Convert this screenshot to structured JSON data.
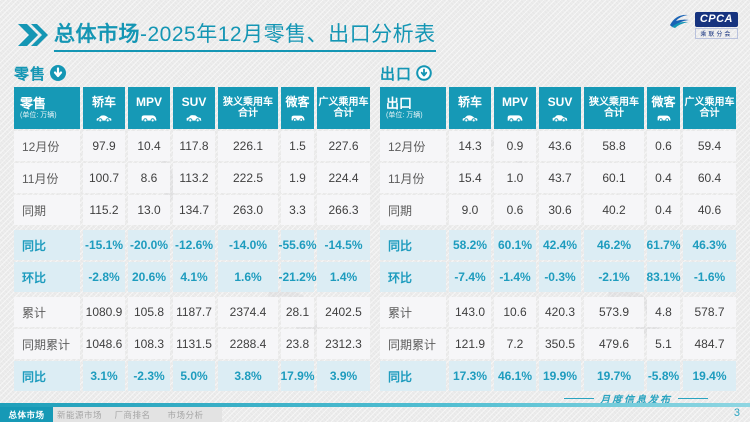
{
  "page": {
    "title_bold": "总体市场",
    "title_rest": "-2025年12月零售、出口分析表",
    "footer_note": "月度信息发布",
    "page_number": "3"
  },
  "logo": {
    "text": "CPCA",
    "subtext": "乘联分会",
    "icon": "cpca-swoosh-icon"
  },
  "tabs": [
    {
      "label": "总体市场",
      "active": true
    },
    {
      "label": "新能源市场",
      "active": false
    },
    {
      "label": "厂商排名",
      "active": false
    },
    {
      "label": "市场分析",
      "active": false
    }
  ],
  "colors": {
    "accent": "#1699b6",
    "title_teal": "#1496b4",
    "pct_bg": "#dcedf4",
    "pct_text": "#1e9cbe",
    "logo_blue": "#16337f"
  },
  "tables": [
    {
      "id": "retail",
      "section_label": "零售",
      "section_icon": "circle-down-arrow-filled-icon",
      "corner_label": "零售",
      "unit": "(单位: 万辆)",
      "columns": [
        {
          "label": "轿车",
          "icon": "sedan-icon"
        },
        {
          "label": "MPV",
          "icon": "mpv-icon"
        },
        {
          "label": "SUV",
          "icon": "suv-icon"
        },
        {
          "label": "狭义乘用车",
          "label2": "合计"
        },
        {
          "label": "微客",
          "icon": "microvan-icon"
        },
        {
          "label": "广义乘用车",
          "label2": "合计"
        }
      ],
      "rows": [
        {
          "label": "12月份",
          "type": "data",
          "gap": false,
          "values": [
            "97.9",
            "10.4",
            "117.8",
            "226.1",
            "1.5",
            "227.6"
          ]
        },
        {
          "label": "11月份",
          "type": "data",
          "gap": false,
          "values": [
            "100.7",
            "8.6",
            "113.2",
            "222.5",
            "1.9",
            "224.4"
          ]
        },
        {
          "label": "同期",
          "type": "data",
          "gap": false,
          "values": [
            "115.2",
            "13.0",
            "134.7",
            "263.0",
            "3.3",
            "266.3"
          ]
        },
        {
          "label": "同比",
          "type": "pct",
          "gap": true,
          "values": [
            "-15.1%",
            "-20.0%",
            "-12.6%",
            "-14.0%",
            "-55.6%",
            "-14.5%"
          ]
        },
        {
          "label": "环比",
          "type": "pct",
          "gap": false,
          "values": [
            "-2.8%",
            "20.6%",
            "4.1%",
            "1.6%",
            "-21.2%",
            "1.4%"
          ]
        },
        {
          "label": "累计",
          "type": "data",
          "gap": true,
          "values": [
            "1080.9",
            "105.8",
            "1187.7",
            "2374.4",
            "28.1",
            "2402.5"
          ]
        },
        {
          "label": "同期累计",
          "type": "data",
          "gap": false,
          "values": [
            "1048.6",
            "108.3",
            "1131.5",
            "2288.4",
            "23.8",
            "2312.3"
          ]
        },
        {
          "label": "同比",
          "type": "pct",
          "gap": false,
          "values": [
            "3.1%",
            "-2.3%",
            "5.0%",
            "3.8%",
            "17.9%",
            "3.9%"
          ]
        }
      ]
    },
    {
      "id": "export",
      "section_label": "出口",
      "section_icon": "circle-down-arrow-ring-icon",
      "corner_label": "出口",
      "unit": "(单位: 万辆)",
      "columns": [
        {
          "label": "轿车",
          "icon": "sedan-icon"
        },
        {
          "label": "MPV",
          "icon": "mpv-icon"
        },
        {
          "label": "SUV",
          "icon": "suv-icon"
        },
        {
          "label": "狭义乘用车",
          "label2": "合计"
        },
        {
          "label": "微客",
          "icon": "microvan-icon"
        },
        {
          "label": "广义乘用车",
          "label2": "合计"
        }
      ],
      "rows": [
        {
          "label": "12月份",
          "type": "data",
          "gap": false,
          "values": [
            "14.3",
            "0.9",
            "43.6",
            "58.8",
            "0.6",
            "59.4"
          ]
        },
        {
          "label": "11月份",
          "type": "data",
          "gap": false,
          "values": [
            "15.4",
            "1.0",
            "43.7",
            "60.1",
            "0.4",
            "60.4"
          ]
        },
        {
          "label": "同期",
          "type": "data",
          "gap": false,
          "values": [
            "9.0",
            "0.6",
            "30.6",
            "40.2",
            "0.4",
            "40.6"
          ]
        },
        {
          "label": "同比",
          "type": "pct",
          "gap": true,
          "values": [
            "58.2%",
            "60.1%",
            "42.4%",
            "46.2%",
            "61.7%",
            "46.3%"
          ]
        },
        {
          "label": "环比",
          "type": "pct",
          "gap": false,
          "values": [
            "-7.4%",
            "-1.4%",
            "-0.3%",
            "-2.1%",
            "83.1%",
            "-1.6%"
          ]
        },
        {
          "label": "累计",
          "type": "data",
          "gap": true,
          "values": [
            "143.0",
            "10.6",
            "420.3",
            "573.9",
            "4.8",
            "578.7"
          ]
        },
        {
          "label": "同期累计",
          "type": "data",
          "gap": false,
          "values": [
            "121.9",
            "7.2",
            "350.5",
            "479.6",
            "5.1",
            "484.7"
          ]
        },
        {
          "label": "同比",
          "type": "pct",
          "gap": false,
          "values": [
            "17.3%",
            "46.1%",
            "19.9%",
            "19.7%",
            "-5.8%",
            "19.4%"
          ]
        }
      ]
    }
  ]
}
